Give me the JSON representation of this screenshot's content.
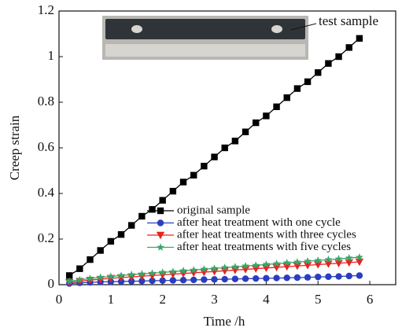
{
  "chart_data": {
    "type": "line",
    "xlabel": "Time /h",
    "ylabel": "Creep strain",
    "annotation": "test sample",
    "x": [
      0.2,
      0.4,
      0.6,
      0.8,
      1.0,
      1.2,
      1.4,
      1.6,
      1.8,
      2.0,
      2.2,
      2.4,
      2.6,
      2.8,
      3.0,
      3.2,
      3.4,
      3.6,
      3.8,
      4.0,
      4.2,
      4.4,
      4.6,
      4.8,
      5.0,
      5.2,
      5.4,
      5.6,
      5.8
    ],
    "series": [
      {
        "name": "original sample",
        "color": "#000000",
        "marker": "square",
        "values": [
          0.04,
          0.07,
          0.11,
          0.15,
          0.19,
          0.22,
          0.26,
          0.3,
          0.33,
          0.37,
          0.41,
          0.45,
          0.48,
          0.52,
          0.56,
          0.6,
          0.63,
          0.67,
          0.71,
          0.74,
          0.78,
          0.82,
          0.86,
          0.89,
          0.93,
          0.97,
          1.0,
          1.04,
          1.08
        ]
      },
      {
        "name": "after heat treatment with one cycle",
        "color": "#2b3dbf",
        "marker": "circle",
        "values": [
          0.005,
          0.008,
          0.01,
          0.012,
          0.013,
          0.014,
          0.015,
          0.016,
          0.017,
          0.018,
          0.019,
          0.02,
          0.021,
          0.022,
          0.023,
          0.024,
          0.025,
          0.026,
          0.027,
          0.028,
          0.029,
          0.03,
          0.031,
          0.032,
          0.034,
          0.035,
          0.036,
          0.038,
          0.04
        ]
      },
      {
        "name": "after heat treatments with three cycles",
        "color": "#e8231f",
        "marker": "triangle-down",
        "values": [
          0.01,
          0.015,
          0.02,
          0.024,
          0.028,
          0.031,
          0.034,
          0.037,
          0.04,
          0.043,
          0.046,
          0.049,
          0.052,
          0.055,
          0.058,
          0.061,
          0.064,
          0.067,
          0.07,
          0.073,
          0.076,
          0.079,
          0.082,
          0.085,
          0.088,
          0.091,
          0.094,
          0.097,
          0.1
        ]
      },
      {
        "name": "after heat treatments with five cycles",
        "color": "#3aa66a",
        "marker": "star",
        "values": [
          0.015,
          0.021,
          0.027,
          0.032,
          0.036,
          0.04,
          0.044,
          0.047,
          0.05,
          0.054,
          0.057,
          0.061,
          0.064,
          0.068,
          0.071,
          0.075,
          0.078,
          0.082,
          0.085,
          0.089,
          0.092,
          0.096,
          0.099,
          0.103,
          0.106,
          0.11,
          0.113,
          0.117,
          0.12
        ]
      }
    ],
    "xlim": [
      0,
      6.5
    ],
    "xticks": [
      0,
      1,
      2,
      3,
      4,
      5,
      6
    ],
    "ylim": [
      0,
      1.2
    ],
    "yticks": [
      0,
      0.2,
      0.4,
      0.6,
      0.8,
      1.0,
      1.2
    ]
  }
}
